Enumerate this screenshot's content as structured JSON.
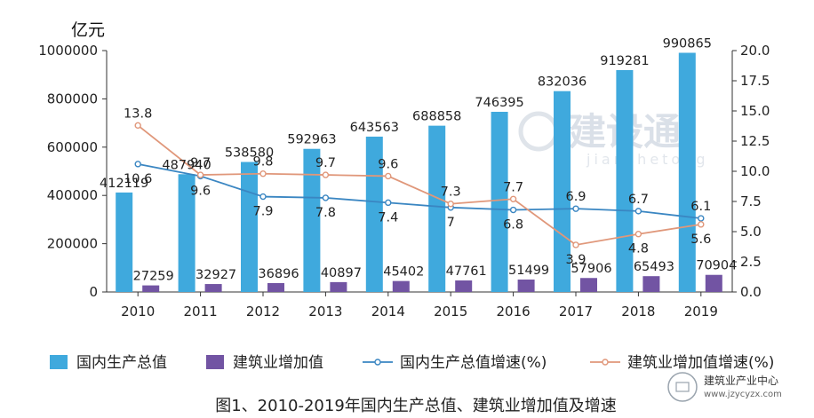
{
  "chart_data": {
    "type": "bar",
    "caption": "图1、2010-2019年国内生产总值、建筑业增加值及增速",
    "y_left_unit": "亿元",
    "y_left_lim": [
      0,
      1000000
    ],
    "y_left_ticks": [
      "0",
      "200000",
      "400000",
      "600000",
      "800000",
      "1000000"
    ],
    "y_right_lim": [
      0,
      20
    ],
    "y_right_ticks": [
      "0.0",
      "2.5",
      "5.0",
      "7.5",
      "10.0",
      "12.5",
      "15.0",
      "17.5",
      "20.0"
    ],
    "categories": [
      "2010",
      "2011",
      "2012",
      "2013",
      "2014",
      "2015",
      "2016",
      "2017",
      "2018",
      "2019"
    ],
    "legend_position": "bottom",
    "series": [
      {
        "name": "国内生产总值",
        "kind": "bar",
        "axis": "left",
        "color": "#3fa9dd",
        "values": [
          412119,
          487940,
          538580,
          592963,
          643563,
          688858,
          746395,
          832036,
          919281,
          990865
        ]
      },
      {
        "name": "建筑业增加值",
        "kind": "bar",
        "axis": "left",
        "color": "#7254a3",
        "values": [
          27259,
          32927,
          36896,
          40897,
          45402,
          47761,
          51499,
          57906,
          65493,
          70904
        ]
      },
      {
        "name": "国内生产总值增速(%)",
        "kind": "line",
        "axis": "right",
        "color": "#3a86c2",
        "values": [
          10.6,
          9.6,
          7.9,
          7.8,
          7.4,
          7,
          6.8,
          6.9,
          6.7,
          6.1
        ]
      },
      {
        "name": "建筑业增加值增速(%)",
        "kind": "line",
        "axis": "right",
        "color": "#e0977a",
        "values": [
          13.8,
          9.7,
          9.8,
          9.7,
          9.6,
          7.3,
          7.7,
          3.9,
          4.8,
          5.6
        ]
      }
    ]
  },
  "watermark": {
    "main": "建设通",
    "sub": "jianshetong"
  },
  "brand": {
    "name": "建筑业产业中心",
    "url": "www.jzycyzx.com"
  }
}
